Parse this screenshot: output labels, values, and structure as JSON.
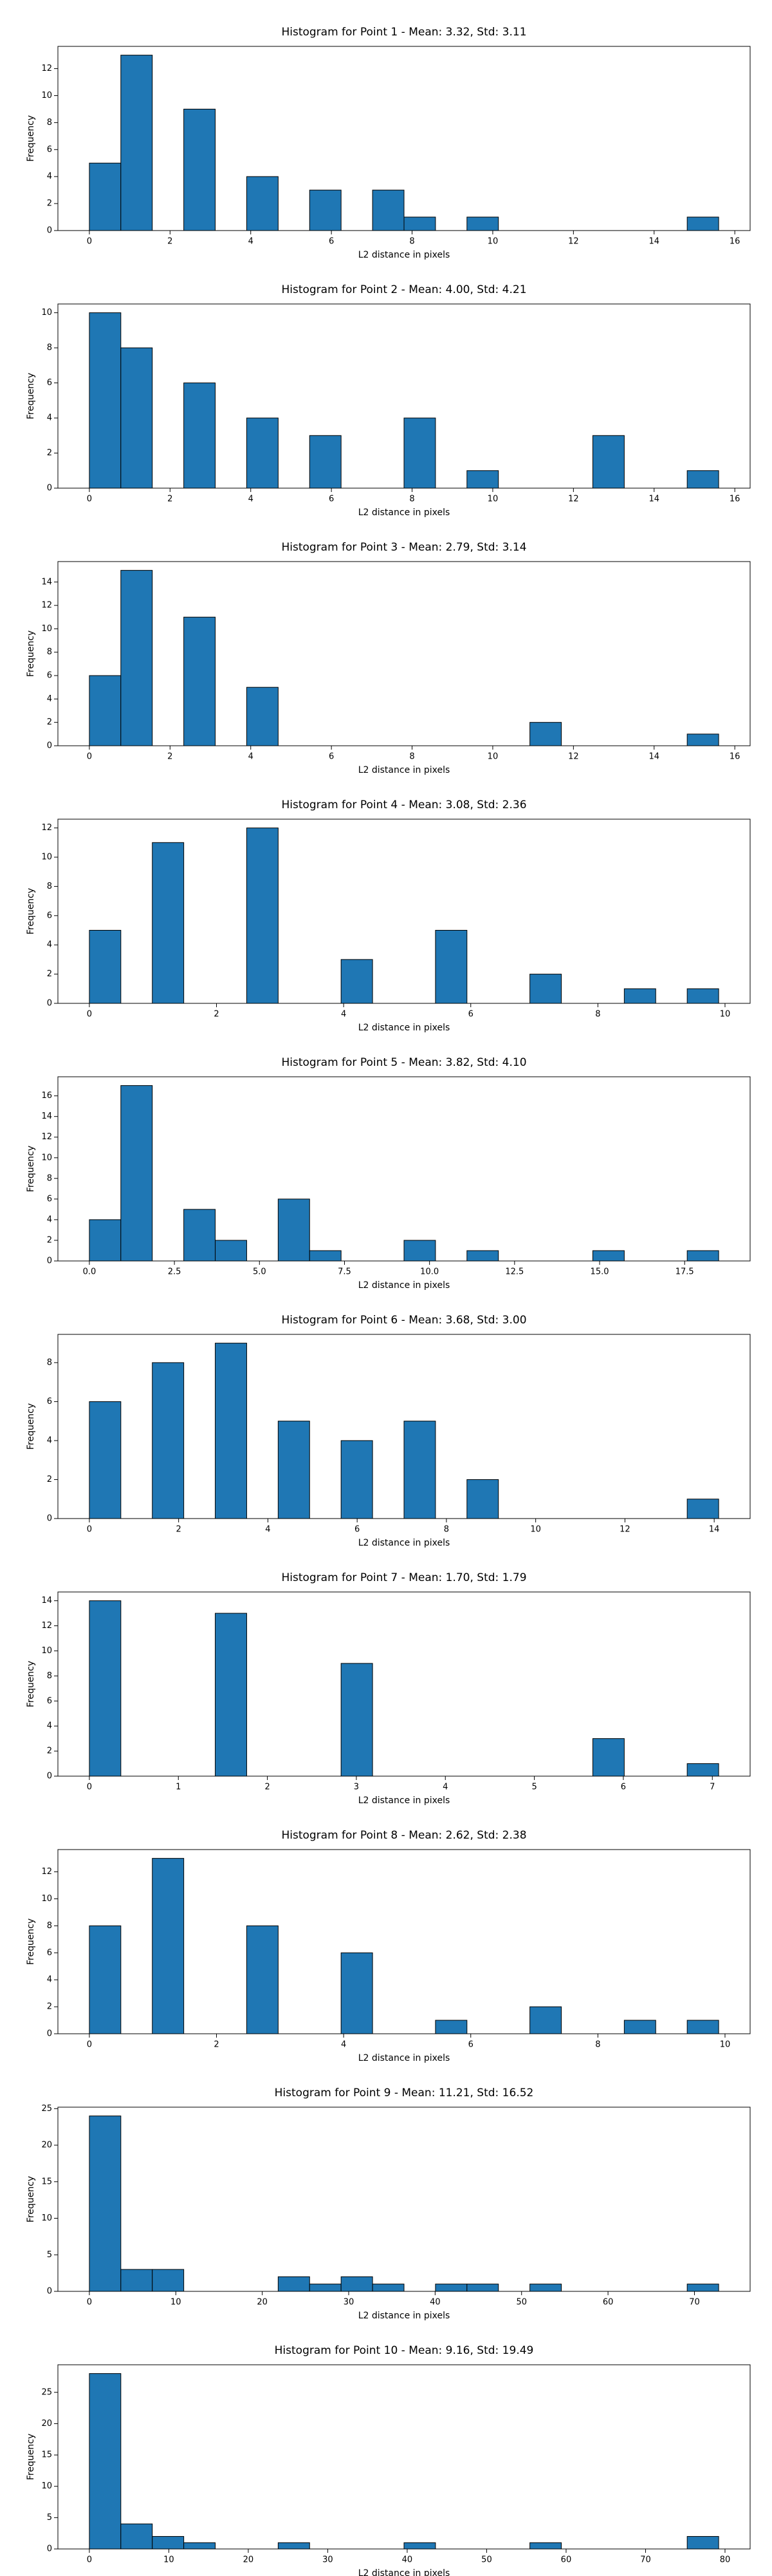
{
  "chart_data": [
    {
      "type": "histogram",
      "title": "Histogram for Point 1 - Mean: 3.32, Std: 3.11",
      "xlabel": "L2 distance in pixels",
      "ylabel": "Frequency",
      "color": "#1f77b4",
      "bins": [
        0,
        0.78,
        1.56,
        2.34,
        3.12,
        3.9,
        4.68,
        5.46,
        6.24,
        7.02,
        7.8,
        8.58,
        9.36,
        10.14,
        10.92,
        11.7,
        12.48,
        13.26,
        14.04,
        14.82,
        15.6
      ],
      "values": [
        5,
        13,
        0,
        9,
        0,
        4,
        0,
        3,
        0,
        3,
        1,
        0,
        1,
        0,
        0,
        0,
        0,
        0,
        0,
        1
      ],
      "xlim": [
        -0.78,
        16.38
      ],
      "xticks": [
        0,
        2,
        4,
        6,
        8,
        10,
        12,
        14,
        16
      ],
      "ylim": [
        0,
        13.65
      ],
      "yticks": [
        0,
        2,
        4,
        6,
        8,
        10,
        12
      ]
    },
    {
      "type": "histogram",
      "title": "Histogram for Point 2 - Mean: 4.00, Std: 4.21",
      "xlabel": "L2 distance in pixels",
      "ylabel": "Frequency",
      "color": "#1f77b4",
      "bins": [
        0,
        0.78,
        1.56,
        2.34,
        3.12,
        3.9,
        4.68,
        5.46,
        6.24,
        7.02,
        7.8,
        8.58,
        9.36,
        10.14,
        10.92,
        11.7,
        12.48,
        13.26,
        14.04,
        14.82,
        15.6
      ],
      "values": [
        10,
        8,
        0,
        6,
        0,
        4,
        0,
        3,
        0,
        0,
        4,
        0,
        1,
        0,
        0,
        0,
        3,
        0,
        0,
        1
      ],
      "xlim": [
        -0.78,
        16.38
      ],
      "xticks": [
        0,
        2,
        4,
        6,
        8,
        10,
        12,
        14,
        16
      ],
      "ylim": [
        0,
        10.5
      ],
      "yticks": [
        0,
        2,
        4,
        6,
        8,
        10
      ]
    },
    {
      "type": "histogram",
      "title": "Histogram for Point 3 - Mean: 2.79, Std: 3.14",
      "xlabel": "L2 distance in pixels",
      "ylabel": "Frequency",
      "color": "#1f77b4",
      "bins": [
        0,
        0.78,
        1.56,
        2.34,
        3.12,
        3.9,
        4.68,
        5.46,
        6.24,
        7.02,
        7.8,
        8.58,
        9.36,
        10.14,
        10.92,
        11.7,
        12.48,
        13.26,
        14.04,
        14.82,
        15.6
      ],
      "values": [
        6,
        15,
        0,
        11,
        0,
        5,
        0,
        0,
        0,
        0,
        0,
        0,
        0,
        0,
        2,
        0,
        0,
        0,
        0,
        1
      ],
      "xlim": [
        -0.78,
        16.38
      ],
      "xticks": [
        0,
        2,
        4,
        6,
        8,
        10,
        12,
        14,
        16
      ],
      "ylim": [
        0,
        15.75
      ],
      "yticks": [
        0,
        2,
        4,
        6,
        8,
        10,
        12,
        14
      ]
    },
    {
      "type": "histogram",
      "title": "Histogram for Point 4 - Mean: 3.08, Std: 2.36",
      "xlabel": "L2 distance in pixels",
      "ylabel": "Frequency",
      "color": "#1f77b4",
      "bins": [
        0,
        0.495,
        0.99,
        1.485,
        1.98,
        2.475,
        2.97,
        3.465,
        3.96,
        4.455,
        4.95,
        5.445,
        5.94,
        6.435,
        6.93,
        7.425,
        7.92,
        8.415,
        8.91,
        9.405,
        9.9
      ],
      "values": [
        5,
        0,
        11,
        0,
        0,
        12,
        0,
        0,
        3,
        0,
        0,
        5,
        0,
        0,
        2,
        0,
        0,
        1,
        0,
        1
      ],
      "xlim": [
        -0.495,
        10.395
      ],
      "xticks": [
        0,
        2,
        4,
        6,
        8,
        10
      ],
      "ylim": [
        0,
        12.6
      ],
      "yticks": [
        0,
        2,
        4,
        6,
        8,
        10,
        12
      ]
    },
    {
      "type": "histogram",
      "title": "Histogram for Point 5 - Mean: 3.82, Std: 4.10",
      "xlabel": "L2 distance in pixels",
      "ylabel": "Frequency",
      "color": "#1f77b4",
      "bins": [
        0,
        0.925,
        1.85,
        2.775,
        3.7,
        4.625,
        5.55,
        6.475,
        7.4,
        8.325,
        9.25,
        10.175,
        11.1,
        12.025,
        12.95,
        13.875,
        14.8,
        15.725,
        16.65,
        17.575,
        18.5
      ],
      "values": [
        4,
        17,
        0,
        5,
        2,
        0,
        6,
        1,
        0,
        0,
        2,
        0,
        1,
        0,
        0,
        0,
        1,
        0,
        0,
        1
      ],
      "xlim": [
        -0.925,
        19.425
      ],
      "xticks": [
        {
          "value": 0,
          "label": "0.0"
        },
        2.5,
        {
          "value": 5,
          "label": "5.0"
        },
        7.5,
        {
          "value": 10,
          "label": "10.0"
        },
        12.5,
        {
          "value": 15,
          "label": "15.0"
        },
        17.5
      ],
      "ylim": [
        0,
        17.85
      ],
      "yticks": [
        0,
        2,
        4,
        6,
        8,
        10,
        12,
        14,
        16
      ]
    },
    {
      "type": "histogram",
      "title": "Histogram for Point 6 - Mean: 3.68, Std: 3.00",
      "xlabel": "L2 distance in pixels",
      "ylabel": "Frequency",
      "color": "#1f77b4",
      "bins": [
        0,
        0.705,
        1.41,
        2.115,
        2.82,
        3.525,
        4.23,
        4.935,
        5.64,
        6.345,
        7.05,
        7.755,
        8.46,
        9.165,
        9.87,
        10.575,
        11.28,
        11.985,
        12.69,
        13.395,
        14.1
      ],
      "values": [
        6,
        0,
        8,
        0,
        9,
        0,
        5,
        0,
        4,
        0,
        5,
        0,
        2,
        0,
        0,
        0,
        0,
        0,
        0,
        1
      ],
      "xlim": [
        -0.705,
        14.805
      ],
      "xticks": [
        0,
        2,
        4,
        6,
        8,
        10,
        12,
        14
      ],
      "ylim": [
        0,
        9.45
      ],
      "yticks": [
        0,
        2,
        4,
        6,
        8
      ]
    },
    {
      "type": "histogram",
      "title": "Histogram for Point 7 - Mean: 1.70, Std: 1.79",
      "xlabel": "L2 distance in pixels",
      "ylabel": "Frequency",
      "color": "#1f77b4",
      "bins": [
        0,
        0.3536,
        0.7071,
        1.0607,
        1.4142,
        1.7678,
        2.1213,
        2.4749,
        2.8284,
        3.182,
        3.5355,
        3.8891,
        4.2426,
        4.5962,
        4.9497,
        5.3033,
        5.6569,
        6.0104,
        6.364,
        6.7175,
        7.0711
      ],
      "values": [
        14,
        0,
        0,
        0,
        13,
        0,
        0,
        0,
        9,
        0,
        0,
        0,
        0,
        0,
        0,
        0,
        3,
        0,
        0,
        1
      ],
      "xlim": [
        -0.3536,
        7.4247
      ],
      "xticks": [
        0,
        1,
        2,
        3,
        4,
        5,
        6,
        7
      ],
      "ylim": [
        0,
        14.7
      ],
      "yticks": [
        0,
        2,
        4,
        6,
        8,
        10,
        12,
        14
      ]
    },
    {
      "type": "histogram",
      "title": "Histogram for Point 8 - Mean: 2.62, Std: 2.38",
      "xlabel": "L2 distance in pixels",
      "ylabel": "Frequency",
      "color": "#1f77b4",
      "bins": [
        0,
        0.495,
        0.99,
        1.485,
        1.98,
        2.475,
        2.97,
        3.465,
        3.96,
        4.455,
        4.95,
        5.445,
        5.94,
        6.435,
        6.93,
        7.425,
        7.92,
        8.415,
        8.91,
        9.405,
        9.9
      ],
      "values": [
        8,
        0,
        13,
        0,
        0,
        8,
        0,
        0,
        6,
        0,
        0,
        1,
        0,
        0,
        2,
        0,
        0,
        1,
        0,
        1
      ],
      "xlim": [
        -0.495,
        10.395
      ],
      "xticks": [
        0,
        2,
        4,
        6,
        8,
        10
      ],
      "ylim": [
        0,
        13.65
      ],
      "yticks": [
        0,
        2,
        4,
        6,
        8,
        10,
        12
      ]
    },
    {
      "type": "histogram",
      "title": "Histogram for Point 9 - Mean: 11.21, Std: 16.52",
      "xlabel": "L2 distance in pixels",
      "ylabel": "Frequency",
      "color": "#1f77b4",
      "bins": [
        0,
        3.64,
        7.28,
        10.92,
        14.56,
        18.2,
        21.84,
        25.48,
        29.12,
        32.76,
        36.4,
        40.04,
        43.68,
        47.32,
        50.96,
        54.6,
        58.24,
        61.88,
        65.52,
        69.16,
        72.8
      ],
      "values": [
        24,
        3,
        3,
        0,
        0,
        0,
        2,
        1,
        2,
        1,
        0,
        1,
        1,
        0,
        1,
        0,
        0,
        0,
        0,
        1
      ],
      "xlim": [
        -3.64,
        76.44
      ],
      "xticks": [
        0,
        10,
        20,
        30,
        40,
        50,
        60,
        70
      ],
      "ylim": [
        0,
        25.2
      ],
      "yticks": [
        0,
        5,
        10,
        15,
        20,
        25
      ]
    },
    {
      "type": "histogram",
      "title": "Histogram for Point 10 - Mean: 9.16, Std: 19.49",
      "xlabel": "L2 distance in pixels",
      "ylabel": "Frequency",
      "color": "#1f77b4",
      "bins": [
        0,
        3.96,
        7.92,
        11.88,
        15.84,
        19.8,
        23.76,
        27.72,
        31.68,
        35.64,
        39.6,
        43.56,
        47.52,
        51.48,
        55.44,
        59.4,
        63.36,
        67.32,
        71.28,
        75.24,
        79.2
      ],
      "values": [
        28,
        4,
        2,
        1,
        0,
        0,
        1,
        0,
        0,
        0,
        1,
        0,
        0,
        0,
        1,
        0,
        0,
        0,
        0,
        2
      ],
      "xlim": [
        -3.96,
        83.16
      ],
      "xticks": [
        0,
        10,
        20,
        30,
        40,
        50,
        60,
        70,
        80
      ],
      "ylim": [
        0,
        29.4
      ],
      "yticks": [
        0,
        5,
        10,
        15,
        20,
        25
      ]
    }
  ]
}
